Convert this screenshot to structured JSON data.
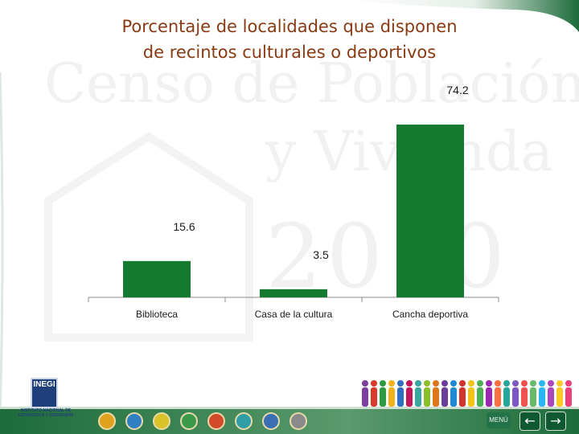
{
  "title_line1": "Porcentaje de localidades que disponen",
  "title_line2": "de recintos culturales o deportivos",
  "watermark": {
    "line1": "Censo de Población",
    "line2": "y Vivienda",
    "line3": "2010"
  },
  "colors": {
    "bar": "#137a2f",
    "title": "#8a3a12",
    "frame": "#1d6b3a"
  },
  "chart_data": {
    "type": "bar",
    "categories": [
      "Biblioteca",
      "Casa de la cultura",
      "Cancha deportiva"
    ],
    "values": [
      15.6,
      3.5,
      74.2
    ],
    "data_labels": [
      "15.6",
      "3.5",
      "74.2"
    ],
    "title": "Porcentaje de localidades que disponen de recintos culturales o deportivos",
    "xlabel": "",
    "ylabel": "",
    "ylim": [
      0,
      74.2
    ],
    "grid": false,
    "legend": "none"
  },
  "logo": {
    "text": "INEGI",
    "subtitle": "INSTITUTO NACIONAL DE ESTADÍSTICA Y GEOGRAFÍA"
  },
  "nav": {
    "menu_label": "MENÚ",
    "back_icon": "arrow-left-icon",
    "forward_icon": "arrow-right-icon",
    "icon_colors": [
      "#e0a21e",
      "#2f7fc1",
      "#d9c22a",
      "#3a9a4a",
      "#d24a2a",
      "#2f9ea5",
      "#3a6fb5",
      "#8a8a8a"
    ]
  },
  "people_colors": [
    "#7b3fa0",
    "#d93a2b",
    "#2e9a3f",
    "#f2b21b",
    "#2f6fbf",
    "#c2185b",
    "#3aa6a0",
    "#8bbf2a",
    "#e0761c",
    "#6a3d9a",
    "#1f8ad1",
    "#d0342c",
    "#f2c41b",
    "#4caf50",
    "#9c27b0",
    "#ff7043",
    "#26a69a",
    "#7e57c2",
    "#ef5350",
    "#66bb6a",
    "#29b6f6",
    "#ab47bc",
    "#ffca28",
    "#ec407a"
  ]
}
